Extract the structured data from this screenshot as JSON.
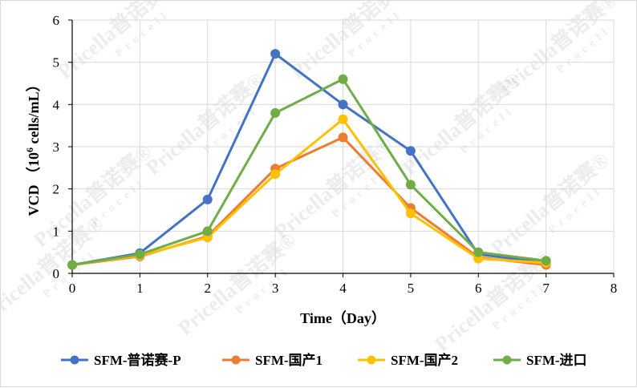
{
  "chart_data": {
    "type": "line",
    "title": "",
    "xlabel": "Time（Day）",
    "ylabel": {
      "prefix": "VCD （10",
      "superscript": "6",
      "suffix": " cells/mL）"
    },
    "xlim": [
      0,
      8
    ],
    "ylim": [
      0,
      6
    ],
    "xticks": [
      0,
      1,
      2,
      3,
      4,
      5,
      6,
      7,
      8
    ],
    "yticks": [
      0,
      1,
      2,
      3,
      4,
      5,
      6
    ],
    "grid": true,
    "legend_position": "bottom",
    "series": [
      {
        "name": "SFM-普诺赛-P",
        "color": "#4472C4",
        "x": [
          0,
          1,
          2,
          3,
          4,
          5,
          6,
          7
        ],
        "y": [
          0.2,
          0.48,
          1.75,
          5.2,
          4.0,
          2.9,
          0.45,
          0.25
        ]
      },
      {
        "name": "SFM-国产1",
        "color": "#ED7D31",
        "x": [
          0,
          1,
          2,
          3,
          4,
          5,
          6,
          7
        ],
        "y": [
          0.2,
          0.4,
          0.88,
          2.48,
          3.22,
          1.55,
          0.38,
          0.2
        ]
      },
      {
        "name": "SFM-国产2",
        "color": "#FFC000",
        "x": [
          0,
          1,
          2,
          3,
          4,
          5,
          6,
          7
        ],
        "y": [
          0.2,
          0.42,
          0.85,
          2.35,
          3.65,
          1.42,
          0.35,
          0.25
        ]
      },
      {
        "name": "SFM-进口",
        "color": "#70AD47",
        "x": [
          0,
          1,
          2,
          3,
          4,
          5,
          6,
          7
        ],
        "y": [
          0.2,
          0.45,
          1.0,
          3.8,
          4.6,
          2.1,
          0.5,
          0.3
        ]
      }
    ]
  },
  "watermark": {
    "brand": "Pricella普诺赛®",
    "sub": "Procell"
  }
}
